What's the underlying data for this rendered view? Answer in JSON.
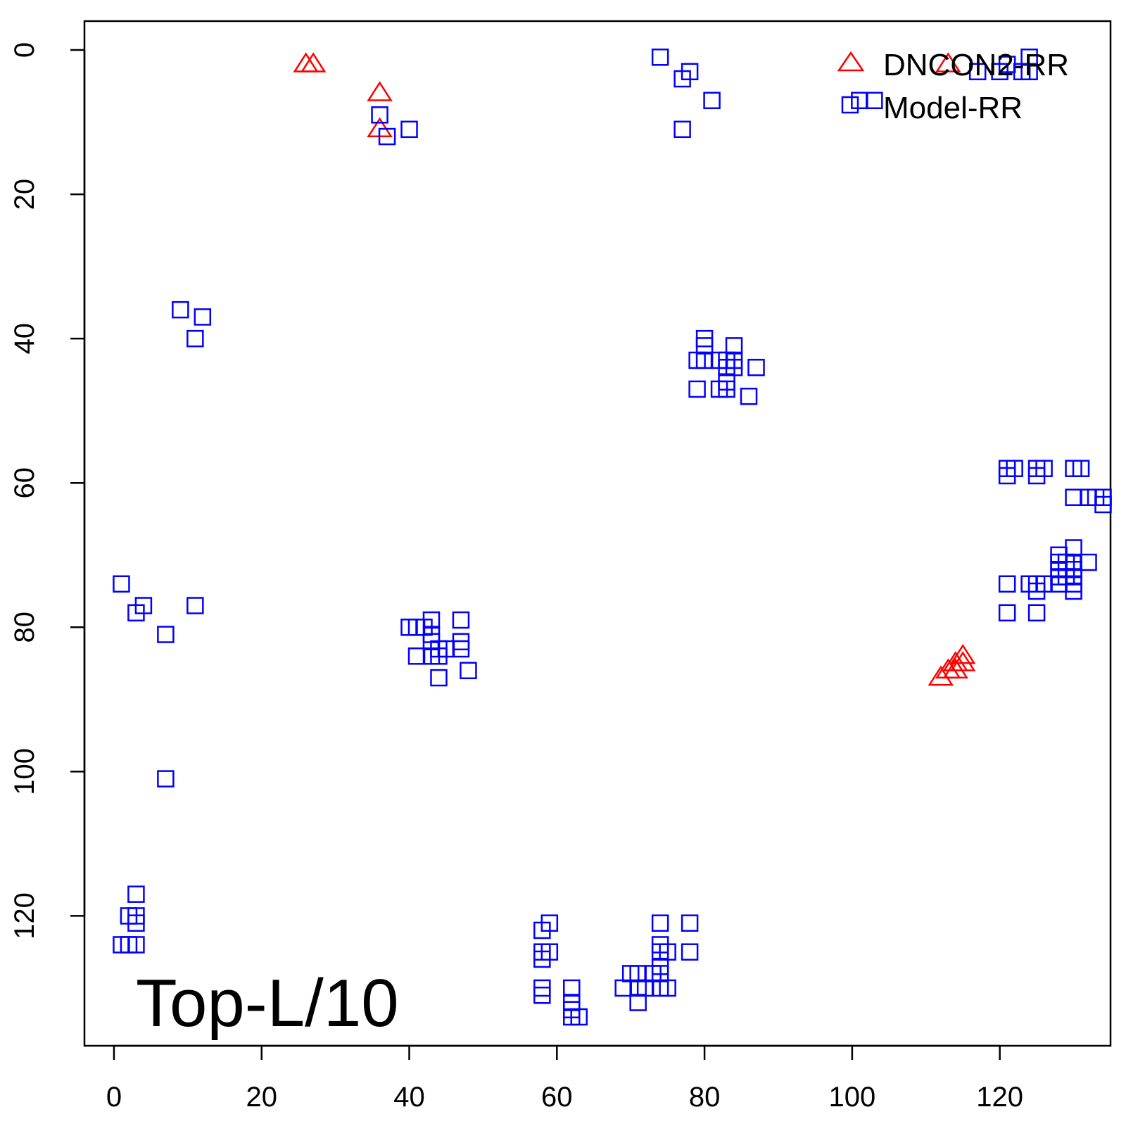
{
  "chart_data": {
    "type": "scatter",
    "title": "",
    "xlabel": "",
    "ylabel": "",
    "xlim": [
      -4,
      135
    ],
    "ylim": [
      138,
      -4
    ],
    "y_reversed": true,
    "x_ticks": [
      0,
      20,
      40,
      60,
      80,
      100,
      120
    ],
    "y_ticks": [
      0,
      20,
      40,
      60,
      80,
      100,
      120
    ],
    "grid": false,
    "legend_position": "top-right",
    "annotation": "Top-L/10",
    "series": [
      {
        "name": "DNCON2-RR",
        "marker": "triangle",
        "color": "#ff0000",
        "points": [
          [
            26,
            2
          ],
          [
            27,
            2
          ],
          [
            36,
            6
          ],
          [
            36,
            11
          ],
          [
            113,
            2
          ],
          [
            112,
            87
          ],
          [
            113,
            86
          ],
          [
            114,
            86
          ],
          [
            114,
            85
          ],
          [
            115,
            85
          ],
          [
            115,
            84
          ]
        ]
      },
      {
        "name": "Model-RR",
        "marker": "square",
        "color": "#0000ff",
        "points": [
          [
            36,
            9
          ],
          [
            37,
            12
          ],
          [
            40,
            11
          ],
          [
            74,
            1
          ],
          [
            77,
            4
          ],
          [
            78,
            3
          ],
          [
            77,
            11
          ],
          [
            81,
            7
          ],
          [
            101,
            7
          ],
          [
            103,
            7
          ],
          [
            117,
            3
          ],
          [
            120,
            3
          ],
          [
            121,
            2
          ],
          [
            123,
            3
          ],
          [
            124,
            1
          ],
          [
            124,
            3
          ],
          [
            9,
            36
          ],
          [
            12,
            37
          ],
          [
            11,
            40
          ],
          [
            80,
            40
          ],
          [
            80,
            41
          ],
          [
            80,
            43
          ],
          [
            79,
            43
          ],
          [
            84,
            41
          ],
          [
            83,
            43
          ],
          [
            84,
            43
          ],
          [
            82,
            43
          ],
          [
            83,
            44
          ],
          [
            84,
            44
          ],
          [
            87,
            44
          ],
          [
            83,
            46
          ],
          [
            79,
            47
          ],
          [
            82,
            47
          ],
          [
            83,
            47
          ],
          [
            86,
            48
          ],
          [
            121,
            58
          ],
          [
            122,
            58
          ],
          [
            121,
            59
          ],
          [
            125,
            58
          ],
          [
            126,
            58
          ],
          [
            125,
            59
          ],
          [
            130,
            58
          ],
          [
            131,
            58
          ],
          [
            130,
            62
          ],
          [
            132,
            62
          ],
          [
            133,
            62
          ],
          [
            134,
            62
          ],
          [
            134,
            63
          ],
          [
            130,
            69
          ],
          [
            128,
            70
          ],
          [
            128,
            71
          ],
          [
            129,
            71
          ],
          [
            130,
            71
          ],
          [
            132,
            71
          ],
          [
            128,
            72
          ],
          [
            130,
            72
          ],
          [
            128,
            73
          ],
          [
            129,
            73
          ],
          [
            130,
            73
          ],
          [
            121,
            74
          ],
          [
            124,
            74
          ],
          [
            125,
            74
          ],
          [
            126,
            74
          ],
          [
            128,
            74
          ],
          [
            130,
            74
          ],
          [
            125,
            75
          ],
          [
            130,
            75
          ],
          [
            121,
            78
          ],
          [
            125,
            78
          ],
          [
            1,
            74
          ],
          [
            4,
            77
          ],
          [
            3,
            78
          ],
          [
            11,
            77
          ],
          [
            7,
            81
          ],
          [
            7,
            101
          ],
          [
            40,
            80
          ],
          [
            41,
            80
          ],
          [
            42,
            80
          ],
          [
            43,
            79
          ],
          [
            43,
            81
          ],
          [
            47,
            79
          ],
          [
            43,
            82
          ],
          [
            47,
            82
          ],
          [
            44,
            83
          ],
          [
            45,
            83
          ],
          [
            47,
            83
          ],
          [
            41,
            84
          ],
          [
            43,
            84
          ],
          [
            44,
            84
          ],
          [
            48,
            86
          ],
          [
            44,
            87
          ],
          [
            3,
            117
          ],
          [
            2,
            120
          ],
          [
            3,
            120
          ],
          [
            3,
            121
          ],
          [
            1,
            124
          ],
          [
            2,
            124
          ],
          [
            3,
            124
          ],
          [
            59,
            121
          ],
          [
            58,
            122
          ],
          [
            58,
            125
          ],
          [
            59,
            125
          ],
          [
            58,
            126
          ],
          [
            58,
            130
          ],
          [
            58,
            131
          ],
          [
            62,
            130
          ],
          [
            62,
            132
          ],
          [
            62,
            133
          ],
          [
            62,
            134
          ],
          [
            63,
            134
          ],
          [
            74,
            121
          ],
          [
            78,
            121
          ],
          [
            74,
            124
          ],
          [
            74,
            125
          ],
          [
            75,
            125
          ],
          [
            78,
            125
          ],
          [
            74,
            127
          ],
          [
            70,
            128
          ],
          [
            71,
            128
          ],
          [
            73,
            128
          ],
          [
            74,
            128
          ],
          [
            69,
            130
          ],
          [
            71,
            130
          ],
          [
            72,
            130
          ],
          [
            74,
            130
          ],
          [
            75,
            130
          ],
          [
            71,
            132
          ]
        ]
      }
    ]
  }
}
